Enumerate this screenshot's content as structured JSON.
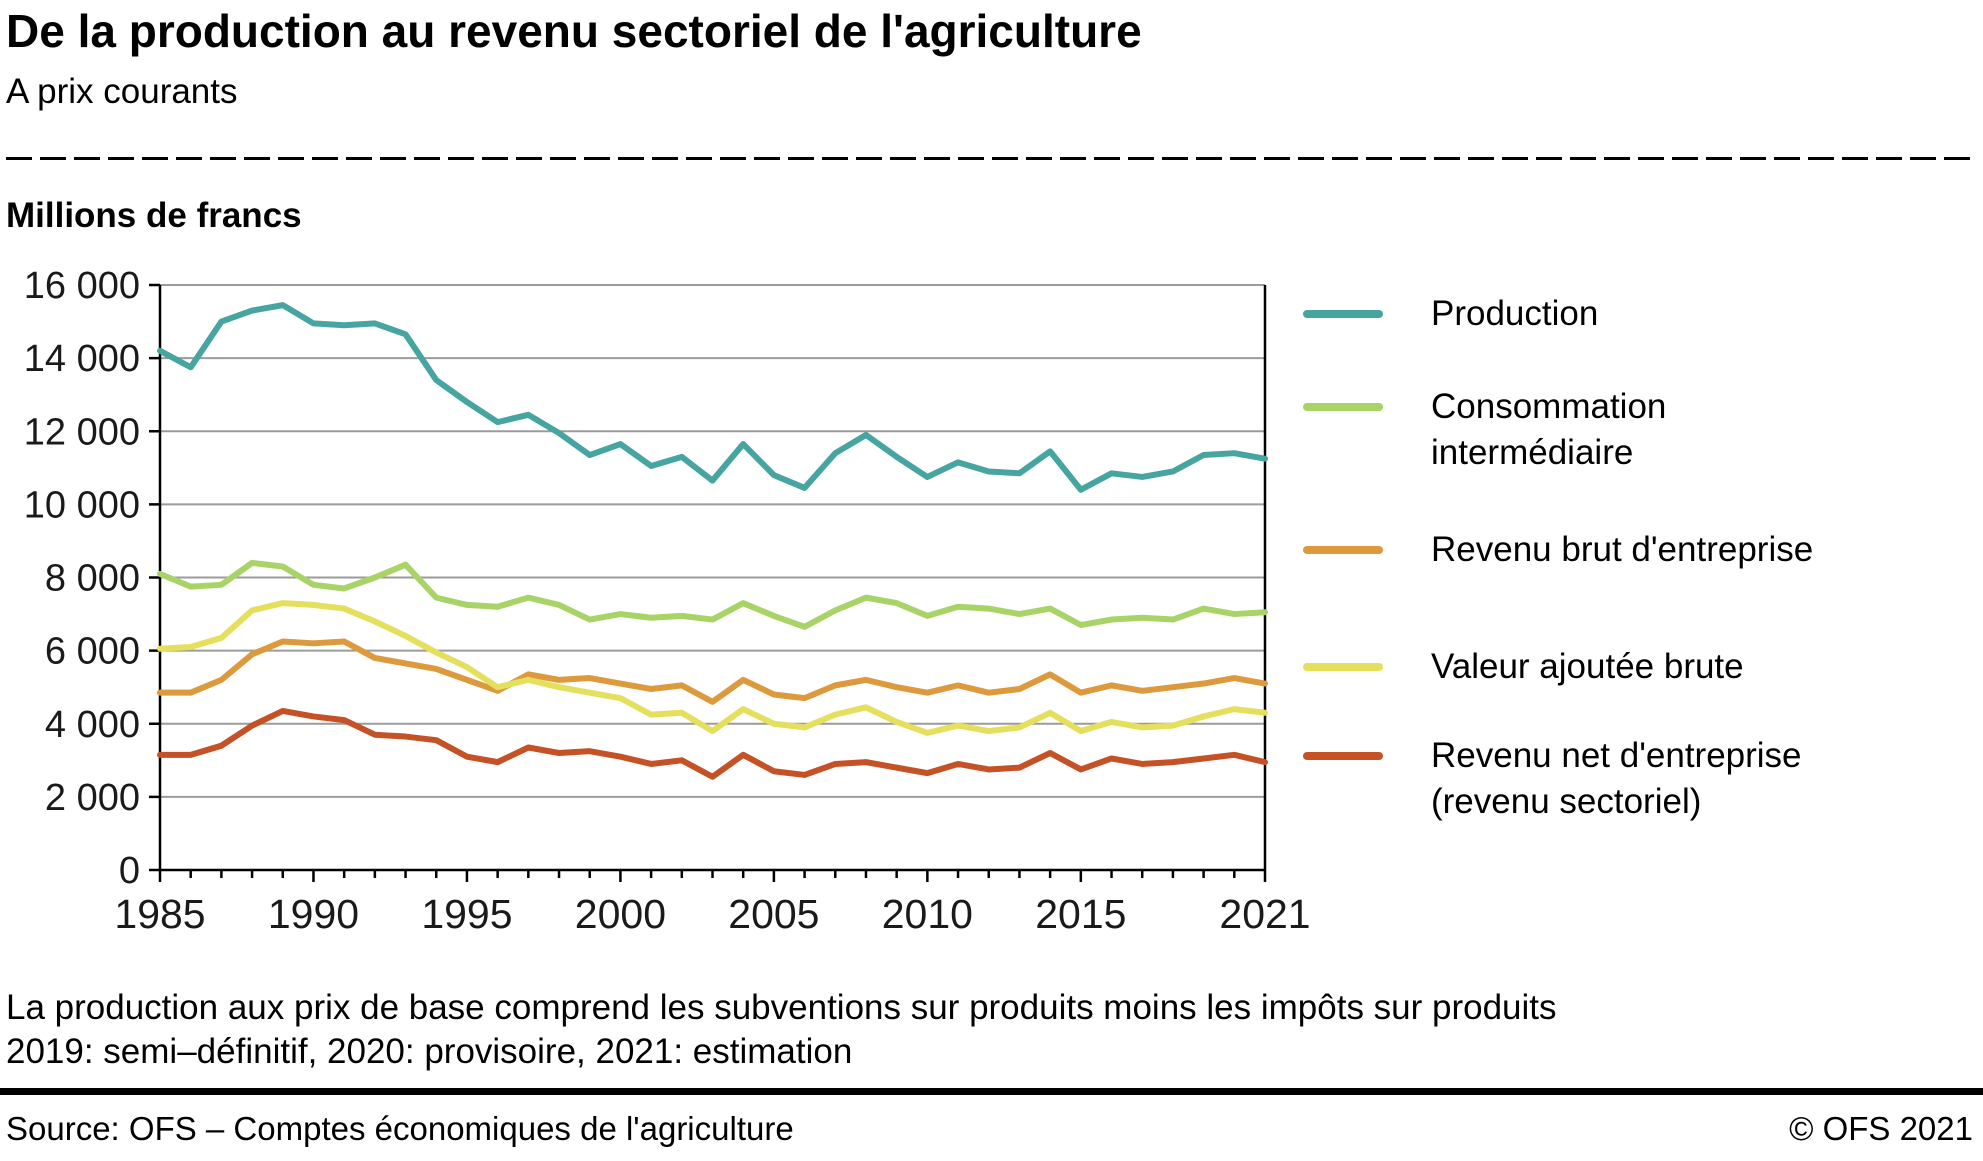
{
  "header": {
    "title": "De la production au revenu sectoriel de l'agriculture",
    "subtitle": "A prix courants"
  },
  "chart_data": {
    "type": "line",
    "title": "De la production au revenu sectoriel de l'agriculture",
    "subtitle": "A prix courants",
    "ylabel": "Millions de francs",
    "xlabel": "",
    "ylim": [
      0,
      16000
    ],
    "ytick_step": 2000,
    "grid": true,
    "legend_position": "right",
    "xticks": [
      1985,
      1990,
      1995,
      2000,
      2005,
      2010,
      2015,
      2021
    ],
    "x": [
      1985,
      1986,
      1987,
      1988,
      1989,
      1990,
      1991,
      1992,
      1993,
      1994,
      1995,
      1996,
      1997,
      1998,
      1999,
      2000,
      2001,
      2002,
      2003,
      2004,
      2005,
      2006,
      2007,
      2008,
      2009,
      2010,
      2011,
      2012,
      2013,
      2014,
      2015,
      2016,
      2017,
      2018,
      2019,
      2020,
      2021
    ],
    "series": [
      {
        "name": "Production",
        "legend_line1": "Production",
        "legend_line2": "",
        "color": "#46a5a0",
        "values": [
          14200,
          13750,
          15000,
          15300,
          15450,
          14950,
          14900,
          14950,
          14650,
          13400,
          12800,
          12250,
          12450,
          11950,
          11350,
          11650,
          11050,
          11300,
          10650,
          11650,
          10800,
          10450,
          11400,
          11900,
          11300,
          10750,
          11150,
          10900,
          10850,
          11450,
          10400,
          10850,
          10750,
          10900,
          11350,
          11400,
          11250
        ]
      },
      {
        "name": "Consommation intermédiaire",
        "legend_line1": "Consommation",
        "legend_line2": "intermédiaire",
        "color": "#a8d366",
        "values": [
          8100,
          7750,
          7800,
          8400,
          8300,
          7800,
          7700,
          8000,
          8350,
          7450,
          7250,
          7200,
          7450,
          7250,
          6850,
          7000,
          6900,
          6950,
          6850,
          7300,
          6950,
          6650,
          7100,
          7450,
          7300,
          6950,
          7200,
          7150,
          7000,
          7150,
          6700,
          6850,
          6900,
          6850,
          7150,
          7000,
          7050
        ]
      },
      {
        "name": "Revenu brut d'entreprise",
        "legend_line1": "Revenu brut d'entreprise",
        "legend_line2": "",
        "color": "#dd9a3d",
        "values": [
          4850,
          4850,
          5200,
          5900,
          6250,
          6200,
          6250,
          5800,
          5650,
          5500,
          5200,
          4900,
          5350,
          5200,
          5250,
          5100,
          4950,
          5050,
          4600,
          5200,
          4800,
          4700,
          5050,
          5200,
          5000,
          4850,
          5050,
          4850,
          4950,
          5350,
          4850,
          5050,
          4900,
          5000,
          5100,
          5250,
          5100
        ]
      },
      {
        "name": "Valeur ajoutée brute",
        "legend_line1": "Valeur ajoutée brute",
        "legend_line2": "",
        "color": "#e4df5c",
        "values": [
          6050,
          6100,
          6350,
          7100,
          7300,
          7250,
          7150,
          6800,
          6400,
          5950,
          5550,
          5000,
          5200,
          5000,
          4850,
          4700,
          4250,
          4300,
          3800,
          4400,
          4000,
          3900,
          4250,
          4450,
          4050,
          3750,
          3950,
          3800,
          3900,
          4300,
          3800,
          4050,
          3900,
          3950,
          4200,
          4400,
          4300
        ]
      },
      {
        "name": "Revenu net d'entreprise (revenu sectoriel)",
        "legend_line1": "Revenu net d'entreprise",
        "legend_line2": "(revenu sectoriel)",
        "color": "#c55227",
        "values": [
          3150,
          3150,
          3400,
          3950,
          4350,
          4200,
          4100,
          3700,
          3650,
          3550,
          3100,
          2950,
          3350,
          3200,
          3250,
          3100,
          2900,
          3000,
          2550,
          3150,
          2700,
          2600,
          2900,
          2950,
          2800,
          2650,
          2900,
          2750,
          2800,
          3200,
          2750,
          3050,
          2900,
          2950,
          3050,
          3150,
          2950
        ]
      }
    ]
  },
  "notes": {
    "line1": "La production aux prix de base comprend les subventions sur produits moins les impôts sur produits",
    "line2": "2019: semi–définitif, 2020: provisoire, 2021: estimation"
  },
  "footer": {
    "source": "Source: OFS – Comptes économiques de l'agriculture",
    "copyright": "© OFS 2021"
  }
}
